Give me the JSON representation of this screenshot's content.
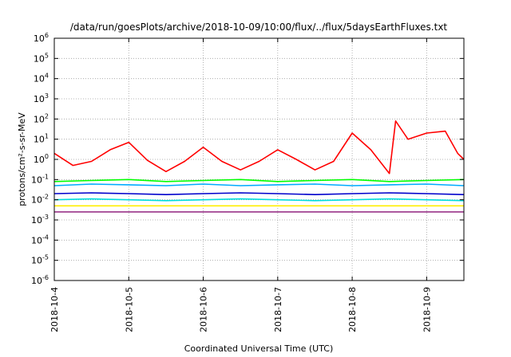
{
  "chart_data": {
    "type": "line",
    "title": "/data/run/goesPlots/archive/2018-10-09/10:00/flux/../flux/5daysEarthFluxes.txt",
    "xlabel": "Coordinated Universal Time (UTC)",
    "ylabel": "protons/cm²-s-sr-MeV",
    "y_scale": "log",
    "ylim": [
      1e-06,
      1000000.0
    ],
    "y_ticks": [
      {
        "value": 1e-06,
        "base": "10",
        "exp": "-6"
      },
      {
        "value": 1e-05,
        "base": "10",
        "exp": "-5"
      },
      {
        "value": 0.0001,
        "base": "10",
        "exp": "-4"
      },
      {
        "value": 0.001,
        "base": "10",
        "exp": "-3"
      },
      {
        "value": 0.01,
        "base": "10",
        "exp": "-2"
      },
      {
        "value": 0.1,
        "base": "10",
        "exp": "-1"
      },
      {
        "value": 1,
        "base": "10",
        "exp": "0"
      },
      {
        "value": 10,
        "base": "10",
        "exp": "1"
      },
      {
        "value": 100,
        "base": "10",
        "exp": "2"
      },
      {
        "value": 1000,
        "base": "10",
        "exp": "3"
      },
      {
        "value": 10000,
        "base": "10",
        "exp": "4"
      },
      {
        "value": 100000,
        "base": "10",
        "exp": "5"
      },
      {
        "value": 1000000,
        "base": "10",
        "exp": "6"
      }
    ],
    "xlim": [
      "2018-10-04",
      "2018-10-09T12:00"
    ],
    "x_ticks": [
      "2018-10-4",
      "2018-10-5",
      "2018-10-6",
      "2018-10-7",
      "2018-10-8",
      "2018-10-9"
    ],
    "grid": true,
    "legend": "none",
    "series": [
      {
        "color": "#ff0000",
        "x": [
          "2018-10-04T00:00",
          "2018-10-04T06:00",
          "2018-10-04T12:00",
          "2018-10-04T18:00",
          "2018-10-05T00:00",
          "2018-10-05T06:00",
          "2018-10-05T12:00",
          "2018-10-05T18:00",
          "2018-10-06T00:00",
          "2018-10-06T06:00",
          "2018-10-06T12:00",
          "2018-10-06T18:00",
          "2018-10-07T00:00",
          "2018-10-07T06:00",
          "2018-10-07T12:00",
          "2018-10-07T18:00",
          "2018-10-08T00:00",
          "2018-10-08T06:00",
          "2018-10-08T12:00",
          "2018-10-08T14:00",
          "2018-10-08T18:00",
          "2018-10-09T00:00",
          "2018-10-09T06:00",
          "2018-10-09T10:00",
          "2018-10-09T12:00"
        ],
        "y": [
          2.0,
          0.5,
          0.8,
          3.0,
          7.0,
          0.9,
          0.25,
          0.8,
          4.0,
          0.8,
          0.3,
          0.8,
          3.0,
          1.0,
          0.3,
          0.8,
          20.0,
          3.0,
          0.2,
          80.0,
          10.0,
          20.0,
          25.0,
          2.0,
          1.0
        ]
      },
      {
        "color": "#00ff00",
        "x": [
          "2018-10-04T00:00",
          "2018-10-04T12:00",
          "2018-10-05T00:00",
          "2018-10-05T12:00",
          "2018-10-06T00:00",
          "2018-10-06T12:00",
          "2018-10-07T00:00",
          "2018-10-07T12:00",
          "2018-10-08T00:00",
          "2018-10-08T12:00",
          "2018-10-09T00:00",
          "2018-10-09T12:00"
        ],
        "y": [
          0.08,
          0.09,
          0.1,
          0.08,
          0.09,
          0.1,
          0.08,
          0.09,
          0.1,
          0.08,
          0.09,
          0.1
        ]
      },
      {
        "color": "#00aaff",
        "x": [
          "2018-10-04T00:00",
          "2018-10-04T12:00",
          "2018-10-05T00:00",
          "2018-10-05T12:00",
          "2018-10-06T00:00",
          "2018-10-06T12:00",
          "2018-10-07T00:00",
          "2018-10-07T12:00",
          "2018-10-08T00:00",
          "2018-10-08T12:00",
          "2018-10-09T00:00",
          "2018-10-09T12:00"
        ],
        "y": [
          0.05,
          0.06,
          0.055,
          0.05,
          0.06,
          0.05,
          0.055,
          0.06,
          0.05,
          0.055,
          0.06,
          0.05
        ]
      },
      {
        "color": "#0000cc",
        "x": [
          "2018-10-04T00:00",
          "2018-10-04T12:00",
          "2018-10-05T00:00",
          "2018-10-05T12:00",
          "2018-10-06T00:00",
          "2018-10-06T12:00",
          "2018-10-07T00:00",
          "2018-10-07T12:00",
          "2018-10-08T00:00",
          "2018-10-08T12:00",
          "2018-10-09T00:00",
          "2018-10-09T12:00"
        ],
        "y": [
          0.02,
          0.022,
          0.02,
          0.018,
          0.02,
          0.022,
          0.02,
          0.018,
          0.02,
          0.022,
          0.02,
          0.018
        ]
      },
      {
        "color": "#00dddd",
        "x": [
          "2018-10-04T00:00",
          "2018-10-04T12:00",
          "2018-10-05T00:00",
          "2018-10-05T12:00",
          "2018-10-06T00:00",
          "2018-10-06T12:00",
          "2018-10-07T00:00",
          "2018-10-07T12:00",
          "2018-10-08T00:00",
          "2018-10-08T12:00",
          "2018-10-09T00:00",
          "2018-10-09T12:00"
        ],
        "y": [
          0.01,
          0.011,
          0.01,
          0.009,
          0.01,
          0.011,
          0.01,
          0.009,
          0.01,
          0.011,
          0.01,
          0.009
        ]
      },
      {
        "color": "#ffee00",
        "x": [
          "2018-10-04T00:00",
          "2018-10-04T12:00",
          "2018-10-05T00:00",
          "2018-10-05T12:00",
          "2018-10-06T00:00",
          "2018-10-06T12:00",
          "2018-10-07T00:00",
          "2018-10-07T12:00",
          "2018-10-08T00:00",
          "2018-10-08T12:00",
          "2018-10-09T00:00",
          "2018-10-09T12:00"
        ],
        "y": [
          0.005,
          0.005,
          0.005,
          0.005,
          0.005,
          0.005,
          0.005,
          0.005,
          0.005,
          0.005,
          0.005,
          0.005
        ]
      },
      {
        "color": "#993388",
        "x": [
          "2018-10-04T00:00",
          "2018-10-04T12:00",
          "2018-10-05T00:00",
          "2018-10-05T12:00",
          "2018-10-06T00:00",
          "2018-10-06T12:00",
          "2018-10-07T00:00",
          "2018-10-07T12:00",
          "2018-10-08T00:00",
          "2018-10-08T12:00",
          "2018-10-09T00:00",
          "2018-10-09T12:00"
        ],
        "y": [
          0.0025,
          0.0025,
          0.0025,
          0.0025,
          0.0025,
          0.0025,
          0.0025,
          0.0025,
          0.0025,
          0.0025,
          0.0025,
          0.0025
        ]
      }
    ]
  }
}
